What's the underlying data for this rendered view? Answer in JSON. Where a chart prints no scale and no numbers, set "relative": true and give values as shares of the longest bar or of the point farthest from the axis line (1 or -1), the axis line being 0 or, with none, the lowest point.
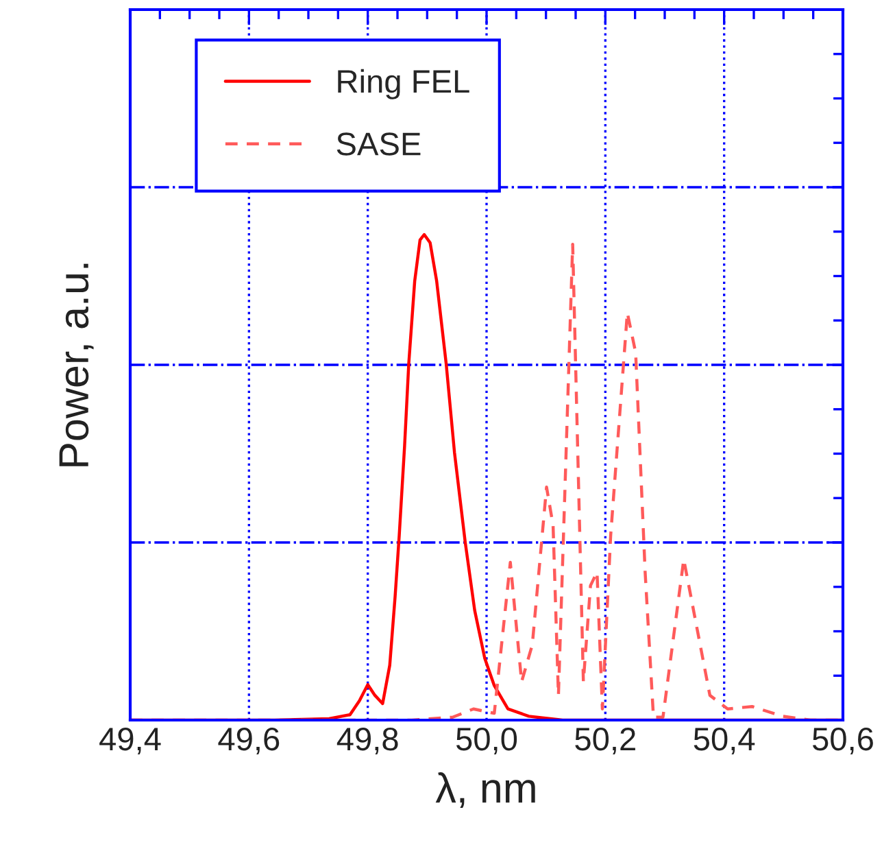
{
  "chart_data": {
    "type": "line",
    "relative": true,
    "xlabel": "λ, nm",
    "ylabel": "Power, a.u.",
    "xlim": [
      49.4,
      50.6
    ],
    "xticks": [
      {
        "value": 49.4,
        "label": "49,4"
      },
      {
        "value": 49.6,
        "label": "49,6"
      },
      {
        "value": 49.8,
        "label": "49,8"
      },
      {
        "value": 50.0,
        "label": "50,0"
      },
      {
        "value": 50.2,
        "label": "50,2"
      },
      {
        "value": 50.4,
        "label": "50,4"
      },
      {
        "value": 50.6,
        "label": "50,6"
      }
    ],
    "grid": true,
    "legend": "top left",
    "marker": "none",
    "series": [
      {
        "name": "Ring FEL",
        "color": "#ff0000",
        "line_style": "solid",
        "x": [
          49.4,
          49.643,
          49.735,
          49.77,
          49.786,
          49.8,
          49.812,
          49.825,
          49.837,
          49.846,
          49.853,
          49.862,
          49.869,
          49.879,
          49.888,
          49.895,
          49.905,
          49.916,
          49.932,
          49.946,
          49.964,
          49.98,
          49.997,
          50.013,
          50.036,
          50.071,
          50.128,
          50.6
        ],
        "values": [
          0,
          0,
          0.003,
          0.011,
          0.04,
          0.073,
          0.051,
          0.034,
          0.113,
          0.254,
          0.381,
          0.565,
          0.734,
          0.904,
          0.989,
          1,
          0.983,
          0.904,
          0.734,
          0.551,
          0.367,
          0.226,
          0.127,
          0.071,
          0.023,
          0.008,
          0,
          0
        ]
      },
      {
        "name": "SASE",
        "color": "#ff5a5a",
        "line_style": "dashed",
        "x": [
          49.4,
          49.874,
          49.943,
          49.978,
          50.013,
          50.04,
          50.059,
          50.077,
          50.101,
          50.112,
          50.121,
          50.145,
          50.163,
          50.175,
          50.186,
          50.195,
          50.209,
          50.237,
          50.251,
          50.267,
          50.281,
          50.297,
          50.332,
          50.376,
          50.406,
          50.447,
          50.498,
          50.545,
          50.6
        ],
        "values": [
          0,
          0,
          0.006,
          0.023,
          0.014,
          0.325,
          0.079,
          0.155,
          0.48,
          0.401,
          0.051,
          0.98,
          0.079,
          0.277,
          0.305,
          0.023,
          0.381,
          0.839,
          0.757,
          0.305,
          0.006,
          0.006,
          0.331,
          0.051,
          0.023,
          0.028,
          0.008,
          0,
          0
        ]
      }
    ]
  }
}
